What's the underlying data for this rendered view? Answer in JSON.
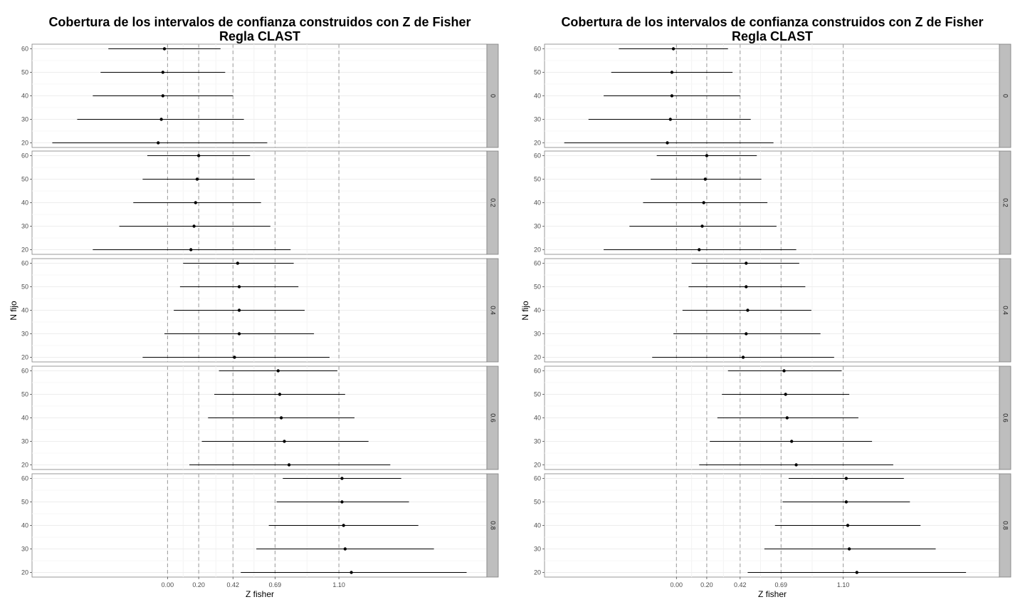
{
  "chart_data": [
    {
      "type": "errorbar",
      "title_lines": [
        "Cobertura de los intervalos de confianza construidos con Z de Fisher",
        "Regla CLAST"
      ],
      "xlabel": "Z fisher",
      "ylabel": "N fijo",
      "x_ticks": [
        0.0,
        0.2,
        0.42,
        0.69,
        1.1
      ],
      "x_tick_labels": [
        "0.00",
        "0.20",
        "0.42",
        "0.69",
        "1.10"
      ],
      "xlim": [
        -0.87,
        2.05
      ],
      "y_categories": [
        20,
        30,
        40,
        50,
        60
      ],
      "y_tick_labels": [
        "20",
        "30",
        "40",
        "50",
        "60"
      ],
      "vlines": [
        0.0,
        0.2,
        0.42,
        0.69,
        1.1
      ],
      "facets": [
        {
          "label": "0",
          "points": [
            {
              "n": 60,
              "est": -0.02,
              "lo": -0.38,
              "hi": 0.34
            },
            {
              "n": 50,
              "est": -0.03,
              "lo": -0.43,
              "hi": 0.37
            },
            {
              "n": 40,
              "est": -0.03,
              "lo": -0.48,
              "hi": 0.42
            },
            {
              "n": 30,
              "est": -0.04,
              "lo": -0.58,
              "hi": 0.49
            },
            {
              "n": 20,
              "est": -0.06,
              "lo": -0.74,
              "hi": 0.64
            }
          ]
        },
        {
          "label": "0.2",
          "points": [
            {
              "n": 60,
              "est": 0.2,
              "lo": -0.13,
              "hi": 0.53
            },
            {
              "n": 50,
              "est": 0.19,
              "lo": -0.16,
              "hi": 0.56
            },
            {
              "n": 40,
              "est": 0.18,
              "lo": -0.22,
              "hi": 0.6
            },
            {
              "n": 30,
              "est": 0.17,
              "lo": -0.31,
              "hi": 0.66
            },
            {
              "n": 20,
              "est": 0.15,
              "lo": -0.48,
              "hi": 0.79
            }
          ]
        },
        {
          "label": "0.4",
          "points": [
            {
              "n": 60,
              "est": 0.45,
              "lo": 0.1,
              "hi": 0.81
            },
            {
              "n": 50,
              "est": 0.46,
              "lo": 0.08,
              "hi": 0.84
            },
            {
              "n": 40,
              "est": 0.46,
              "lo": 0.04,
              "hi": 0.88
            },
            {
              "n": 30,
              "est": 0.46,
              "lo": -0.02,
              "hi": 0.94
            },
            {
              "n": 20,
              "est": 0.43,
              "lo": -0.16,
              "hi": 1.04
            }
          ]
        },
        {
          "label": "0.6",
          "points": [
            {
              "n": 60,
              "est": 0.71,
              "lo": 0.33,
              "hi": 1.09
            },
            {
              "n": 50,
              "est": 0.72,
              "lo": 0.3,
              "hi": 1.14
            },
            {
              "n": 40,
              "est": 0.73,
              "lo": 0.26,
              "hi": 1.2
            },
            {
              "n": 30,
              "est": 0.75,
              "lo": 0.22,
              "hi": 1.29
            },
            {
              "n": 20,
              "est": 0.78,
              "lo": 0.14,
              "hi": 1.43
            }
          ]
        },
        {
          "label": "0.8",
          "points": [
            {
              "n": 60,
              "est": 1.12,
              "lo": 0.74,
              "hi": 1.5
            },
            {
              "n": 50,
              "est": 1.12,
              "lo": 0.7,
              "hi": 1.55
            },
            {
              "n": 40,
              "est": 1.13,
              "lo": 0.65,
              "hi": 1.61
            },
            {
              "n": 30,
              "est": 1.14,
              "lo": 0.57,
              "hi": 1.71
            },
            {
              "n": 20,
              "est": 1.18,
              "lo": 0.47,
              "hi": 1.92
            }
          ]
        }
      ]
    },
    {
      "type": "errorbar",
      "title_lines": [
        "Cobertura de los intervalos de confianza construidos con Z de Fisher",
        "Regla CLAST"
      ],
      "xlabel": "Z fisher",
      "ylabel": "N fijo",
      "x_ticks": [
        0.0,
        0.2,
        0.42,
        0.69,
        1.1
      ],
      "x_tick_labels": [
        "0.00",
        "0.20",
        "0.42",
        "0.69",
        "1.10"
      ],
      "xlim": [
        -0.87,
        2.13
      ],
      "y_categories": [
        20,
        30,
        40,
        50,
        60
      ],
      "y_tick_labels": [
        "20",
        "30",
        "40",
        "50",
        "60"
      ],
      "vlines": [
        0.0,
        0.2,
        0.42,
        0.69,
        1.1
      ],
      "facets": [
        {
          "label": "0",
          "points": [
            {
              "n": 60,
              "est": -0.02,
              "lo": -0.38,
              "hi": 0.34
            },
            {
              "n": 50,
              "est": -0.03,
              "lo": -0.43,
              "hi": 0.37
            },
            {
              "n": 40,
              "est": -0.03,
              "lo": -0.48,
              "hi": 0.42
            },
            {
              "n": 30,
              "est": -0.04,
              "lo": -0.58,
              "hi": 0.49
            },
            {
              "n": 20,
              "est": -0.06,
              "lo": -0.74,
              "hi": 0.64
            }
          ]
        },
        {
          "label": "0.2",
          "points": [
            {
              "n": 60,
              "est": 0.2,
              "lo": -0.13,
              "hi": 0.53
            },
            {
              "n": 50,
              "est": 0.19,
              "lo": -0.17,
              "hi": 0.56
            },
            {
              "n": 40,
              "est": 0.18,
              "lo": -0.22,
              "hi": 0.6
            },
            {
              "n": 30,
              "est": 0.17,
              "lo": -0.31,
              "hi": 0.66
            },
            {
              "n": 20,
              "est": 0.15,
              "lo": -0.48,
              "hi": 0.79
            }
          ]
        },
        {
          "label": "0.4",
          "points": [
            {
              "n": 60,
              "est": 0.46,
              "lo": 0.1,
              "hi": 0.81
            },
            {
              "n": 50,
              "est": 0.46,
              "lo": 0.08,
              "hi": 0.85
            },
            {
              "n": 40,
              "est": 0.47,
              "lo": 0.04,
              "hi": 0.89
            },
            {
              "n": 30,
              "est": 0.46,
              "lo": -0.02,
              "hi": 0.95
            },
            {
              "n": 20,
              "est": 0.44,
              "lo": -0.16,
              "hi": 1.04
            }
          ]
        },
        {
          "label": "0.6",
          "points": [
            {
              "n": 60,
              "est": 0.71,
              "lo": 0.34,
              "hi": 1.09
            },
            {
              "n": 50,
              "est": 0.72,
              "lo": 0.3,
              "hi": 1.14
            },
            {
              "n": 40,
              "est": 0.73,
              "lo": 0.27,
              "hi": 1.2
            },
            {
              "n": 30,
              "est": 0.76,
              "lo": 0.22,
              "hi": 1.29
            },
            {
              "n": 20,
              "est": 0.79,
              "lo": 0.15,
              "hi": 1.43
            }
          ]
        },
        {
          "label": "0.8",
          "points": [
            {
              "n": 60,
              "est": 1.12,
              "lo": 0.74,
              "hi": 1.5
            },
            {
              "n": 50,
              "est": 1.12,
              "lo": 0.7,
              "hi": 1.54
            },
            {
              "n": 40,
              "est": 1.13,
              "lo": 0.65,
              "hi": 1.61
            },
            {
              "n": 30,
              "est": 1.14,
              "lo": 0.58,
              "hi": 1.71
            },
            {
              "n": 20,
              "est": 1.19,
              "lo": 0.47,
              "hi": 1.91
            }
          ]
        }
      ]
    }
  ]
}
